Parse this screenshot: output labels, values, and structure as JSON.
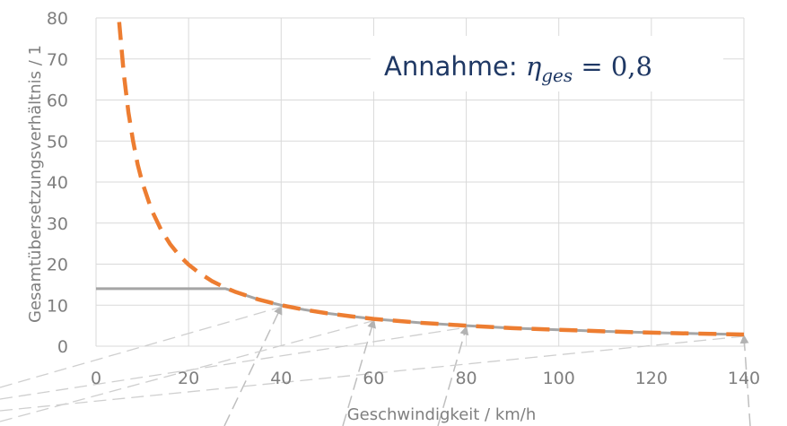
{
  "chart_data": {
    "type": "line",
    "title": "",
    "xlabel": "Geschwindigkeit / km/h",
    "ylabel": "Gesamtübersetzungsverhältnis / 1",
    "xlim": [
      0,
      140
    ],
    "ylim": [
      0,
      80
    ],
    "x_ticks": [
      "0",
      "20",
      "40",
      "60",
      "80",
      "100",
      "120",
      "140"
    ],
    "y_ticks": [
      "0",
      "10",
      "20",
      "30",
      "40",
      "50",
      "60",
      "70",
      "80"
    ],
    "grid": true,
    "annotation": {
      "prefix": "Annahme: ",
      "symbol": "η",
      "subscript": "ges",
      "relation": " = 0,8"
    },
    "series": [
      {
        "color": "#ed7d31",
        "style": "dashed",
        "x": [
          5,
          6,
          7,
          8,
          9,
          10,
          12,
          14,
          16,
          18,
          20,
          22,
          25,
          28,
          30,
          35,
          40,
          45,
          50,
          55,
          60,
          70,
          80,
          90,
          100,
          110,
          120,
          130,
          140
        ],
        "y": [
          79,
          66.5,
          57,
          50,
          44.3,
          39.9,
          33.2,
          28.5,
          24.9,
          22.1,
          19.9,
          18.1,
          15.9,
          14.2,
          13.3,
          11.4,
          10,
          8.9,
          8,
          7.3,
          6.65,
          5.7,
          5,
          4.4,
          4,
          3.6,
          3.3,
          3.05,
          2.85
        ]
      },
      {
        "color": "#a5a5a5",
        "style": "solid",
        "x": [
          0,
          28,
          30,
          35,
          40,
          45,
          50,
          55,
          60,
          70,
          80,
          90,
          100,
          110,
          120,
          130,
          140
        ],
        "y": [
          14,
          14,
          13.3,
          11.4,
          10,
          8.9,
          8,
          7.3,
          6.65,
          5.7,
          5,
          4.4,
          4,
          3.6,
          3.3,
          3.05,
          2.85
        ]
      }
    ],
    "arrow_targets": [
      {
        "x": 40,
        "y": 10
      },
      {
        "x": 60,
        "y": 6.65
      },
      {
        "x": 80,
        "y": 5
      },
      {
        "x": 140,
        "y": 2.85
      }
    ]
  }
}
